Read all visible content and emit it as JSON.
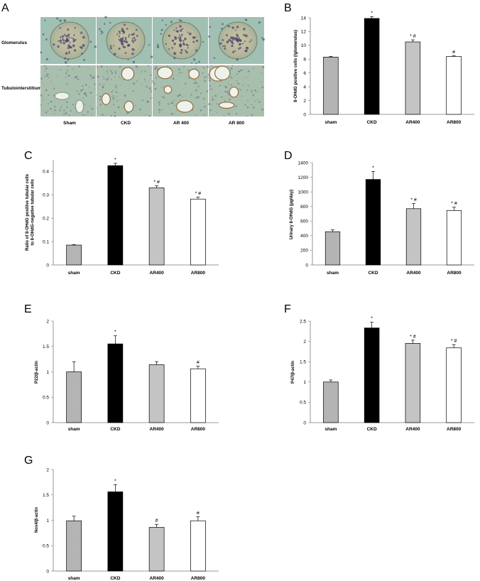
{
  "panel_a": {
    "letter": "A",
    "row_labels": [
      "Glomerulus",
      "Tubulointerstitium"
    ],
    "column_labels": [
      "Sham",
      "CKD",
      "AR 400",
      "AR 800"
    ]
  },
  "colors": {
    "sham": "#bdbdbd",
    "ckd": "#000000",
    "ar400": "#c4c4c4",
    "ar800": "#ffffff"
  },
  "chart_data": [
    {
      "type": "bar",
      "letter": "B",
      "categories": [
        "sham",
        "CKD",
        "AR400",
        "AR800"
      ],
      "values": [
        8.3,
        13.9,
        10.5,
        8.4
      ],
      "errors": [
        0.1,
        0.25,
        0.3,
        0.1
      ],
      "significance": [
        "",
        "*",
        "* #",
        "#"
      ],
      "ylabel": "8-OHdG positive cells (/glomerulus)",
      "ylim": [
        0,
        14
      ],
      "yticks": [
        0,
        2,
        4,
        6,
        8,
        10,
        12,
        14
      ],
      "ytick_labels": [
        "0",
        "2",
        "4",
        "6",
        "8",
        "10",
        "12",
        "14"
      ]
    },
    {
      "type": "bar",
      "letter": "C",
      "categories": [
        "sham",
        "CKD",
        "AR400",
        "AR800"
      ],
      "values": [
        0.085,
        0.425,
        0.33,
        0.282
      ],
      "errors": [
        0.002,
        0.01,
        0.009,
        0.008
      ],
      "significance": [
        "",
        "*",
        "* #",
        "* #"
      ],
      "ylabel": "Ratio of 8-OHdG positive tubular cells to 8-OHdG-negative tubular cells",
      "ylabel_lines": [
        "Ratio of 8-OHdG positive tubular cells",
        "to 8-OHdG-negative tubular cells"
      ],
      "ylim": [
        0,
        0.45
      ],
      "yticks": [
        0,
        0.1,
        0.2,
        0.3,
        0.4
      ],
      "ytick_labels": [
        "0",
        "0.1",
        "0.2",
        "0.3",
        "0.4"
      ]
    },
    {
      "type": "bar",
      "letter": "D",
      "categories": [
        "sham",
        "CKD",
        "AR400",
        "AR800"
      ],
      "values": [
        455,
        1170,
        770,
        745
      ],
      "errors": [
        25,
        110,
        70,
        45
      ],
      "significance": [
        "",
        "*",
        "* #",
        "* #"
      ],
      "ylabel": "Urinary 8-OHdG (μg/day)",
      "ylim": [
        0,
        1400
      ],
      "yticks": [
        0,
        200,
        400,
        600,
        800,
        1000,
        1200,
        1400
      ],
      "ytick_labels": [
        "0",
        "200",
        "400",
        "600",
        "800",
        "1000",
        "1200",
        "1400"
      ]
    },
    {
      "type": "bar",
      "letter": "E",
      "categories": [
        "sham",
        "CKD",
        "AR400",
        "AR800"
      ],
      "values": [
        1.0,
        1.55,
        1.14,
        1.06
      ],
      "errors": [
        0.2,
        0.16,
        0.06,
        0.05
      ],
      "significance": [
        "",
        "*",
        "",
        "#"
      ],
      "ylabel": "P22/β-actin",
      "ylim": [
        0,
        2
      ],
      "yticks": [
        0,
        0.5,
        1,
        1.5,
        2
      ],
      "ytick_labels": [
        "0",
        "0.5",
        "1",
        "1.5",
        "2"
      ]
    },
    {
      "type": "bar",
      "letter": "F",
      "categories": [
        "sham",
        "CKD",
        "AR400",
        "AR800"
      ],
      "values": [
        1.0,
        2.33,
        1.95,
        1.84
      ],
      "errors": [
        0.05,
        0.14,
        0.08,
        0.08
      ],
      "significance": [
        "",
        "*",
        "* #",
        "* #"
      ],
      "ylabel": "P47/β-actin",
      "ylim": [
        0,
        2.5
      ],
      "yticks": [
        0,
        0.5,
        1,
        1.5,
        2,
        2.5
      ],
      "ytick_labels": [
        "0",
        "0.5",
        "1",
        "1.5",
        "2",
        "2.5"
      ]
    },
    {
      "type": "bar",
      "letter": "G",
      "categories": [
        "sham",
        "CKD",
        "AR400",
        "AR800"
      ],
      "values": [
        0.99,
        1.56,
        0.86,
        0.99
      ],
      "errors": [
        0.09,
        0.14,
        0.06,
        0.08
      ],
      "significance": [
        "",
        "*",
        "#",
        "#"
      ],
      "ylabel": "Nox4/β-actin",
      "ylim": [
        0,
        2
      ],
      "yticks": [
        0,
        0.5,
        1,
        1.5,
        2
      ],
      "ytick_labels": [
        "0",
        "0.5",
        "1",
        "1.5",
        "2"
      ]
    }
  ]
}
